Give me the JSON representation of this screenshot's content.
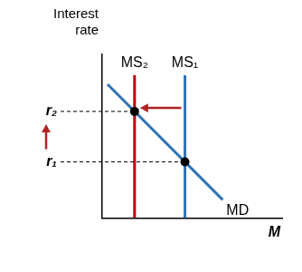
{
  "chart_data": {
    "type": "line",
    "x_label": "M",
    "y_label": "Interest rate",
    "xlim": [
      0,
      10
    ],
    "ylim": [
      0,
      10
    ],
    "yticks": [
      {
        "value": 3.42,
        "label": "r₁"
      },
      {
        "value": 6.5,
        "label": "r₂"
      }
    ],
    "tick_labels": "y",
    "grid": false,
    "series": [
      {
        "name": "MS₁",
        "color": "#2f74b5",
        "x": [
          4.6,
          4.6
        ],
        "values": [
          0,
          8.7
        ]
      },
      {
        "name": "MS₂",
        "color": "#c00000",
        "x": [
          1.8,
          1.8
        ],
        "values": [
          0,
          8.7
        ]
      },
      {
        "name": "MD",
        "color": "#2f74b5",
        "x": [
          0.3,
          6.7
        ],
        "values": [
          8.15,
          1.11
        ]
      }
    ]
  }
}
